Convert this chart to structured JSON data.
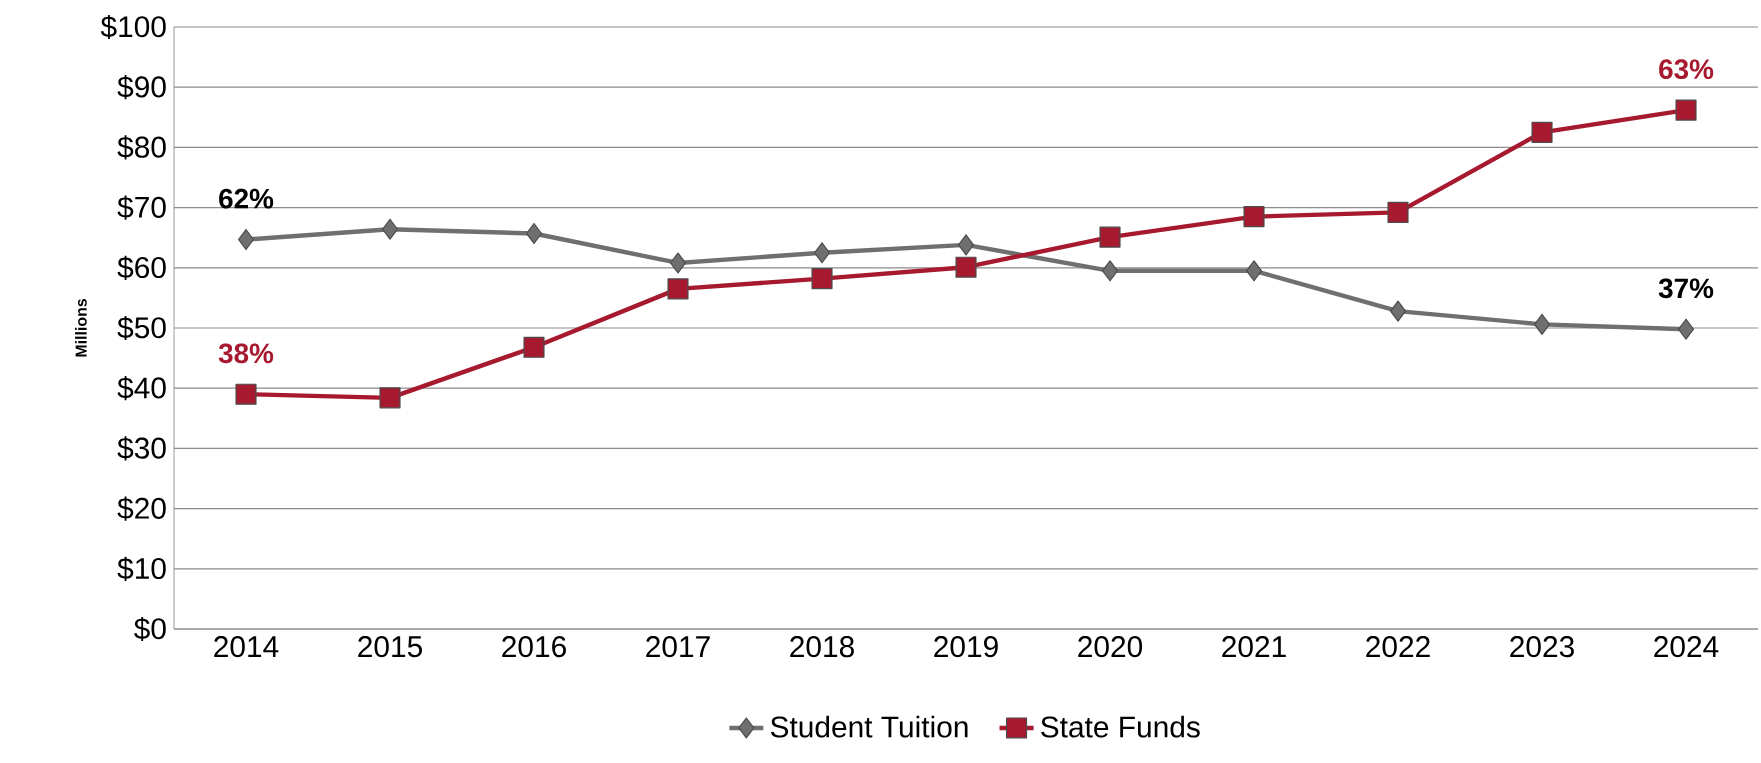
{
  "chart_data": {
    "type": "line",
    "ylabel": "Millions",
    "categories": [
      "2014",
      "2015",
      "2016",
      "2017",
      "2018",
      "2019",
      "2020",
      "2021",
      "2022",
      "2023",
      "2024"
    ],
    "series": [
      {
        "name": "Student Tuition",
        "color": "#6f6f6f",
        "marker": "diamond",
        "values": [
          64.7,
          66.4,
          65.7,
          60.8,
          62.5,
          63.8,
          59.5,
          59.5,
          52.8,
          50.6,
          49.8
        ]
      },
      {
        "name": "State Funds",
        "color": "#a6192e",
        "marker": "square",
        "values": [
          39.0,
          38.4,
          46.8,
          56.5,
          58.2,
          60.1,
          65.1,
          68.5,
          69.2,
          82.5,
          86.2
        ]
      }
    ],
    "ylim": [
      0,
      100
    ],
    "yticks": [
      {
        "value": 0,
        "label": "$0"
      },
      {
        "value": 10,
        "label": "$10"
      },
      {
        "value": 20,
        "label": "$20"
      },
      {
        "value": 30,
        "label": "$30"
      },
      {
        "value": 40,
        "label": "$40"
      },
      {
        "value": 50,
        "label": "$50"
      },
      {
        "value": 60,
        "label": "$60"
      },
      {
        "value": 70,
        "label": "$70"
      },
      {
        "value": 80,
        "label": "$80"
      },
      {
        "value": 90,
        "label": "$90"
      },
      {
        "value": 100,
        "label": "$100"
      }
    ],
    "grid": "y",
    "legend": "bottom",
    "line_style": "solid",
    "annotations": [
      {
        "text": "62%",
        "x": "2014",
        "y": 64.7
      },
      {
        "text": "38%",
        "x": "2014",
        "y": 39.0
      },
      {
        "text": "63%",
        "x": "2024",
        "y": 86.2
      },
      {
        "text": "37%",
        "x": "2024",
        "y": 49.8
      }
    ]
  }
}
